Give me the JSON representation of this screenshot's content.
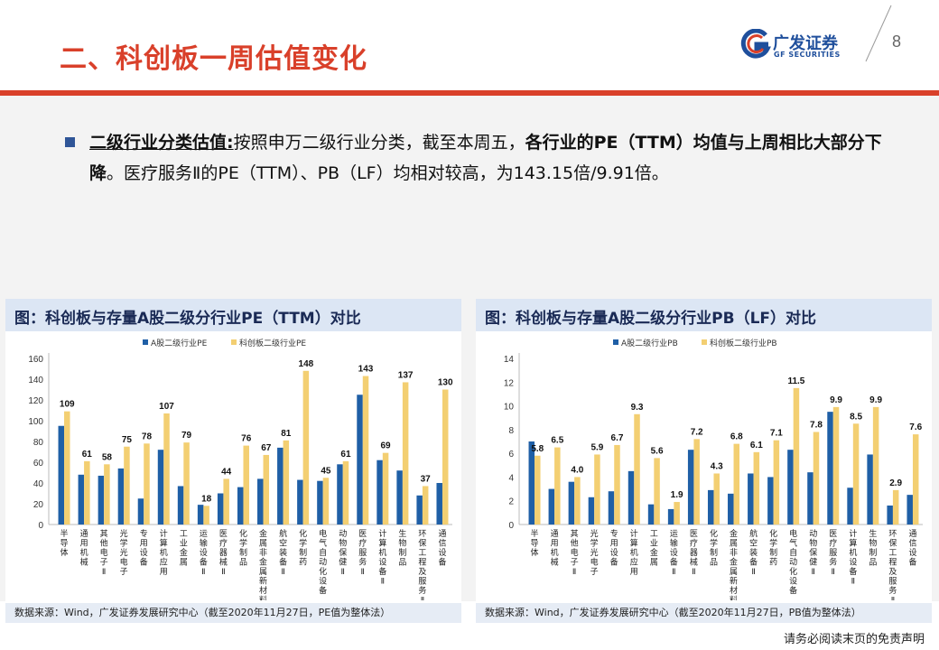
{
  "header": {
    "title": "二、科创板一周估值变化",
    "logo_text": "广发证券",
    "logo_sub": "GF SECURITIES",
    "page_number": "8"
  },
  "body": {
    "label": "二级行业分类估值:",
    "text1": "按照申万二级行业分类，截至本周五，",
    "bold1": "各行业的PE（TTM）均值与上周相比大部分下降",
    "text2": "。医疗服务Ⅱ的PE（TTM）、PB（LF）均相对较高，为143.15倍/9.91倍。"
  },
  "colors": {
    "blue": "#1f5fa6",
    "gold": "#f3cf72",
    "red": "#d9402a"
  },
  "charts": [
    {
      "panel_title": "图：科创板与存量A股二级分行业PE（TTM）对比",
      "source": "数据来源：Wind，广发证券发展研究中心（截至2020年11月27日，PE值为整体法）",
      "chart_data": {
        "type": "bar",
        "categories": [
          "半导体",
          "通用机械",
          "其他电子Ⅱ",
          "光学光电子",
          "专用设备",
          "计算机应用",
          "工业金属",
          "运输设备Ⅱ",
          "医疗器械Ⅱ",
          "化学制品",
          "金属非金属新材料",
          "航空装备Ⅱ",
          "化学制药",
          "电气自动化设备",
          "动物保健Ⅱ",
          "医疗服务Ⅱ",
          "计算机设备Ⅱ",
          "生物制品",
          "环保工程及服务Ⅱ",
          "通信设备"
        ],
        "series": [
          {
            "name": "A股二级行业PE",
            "values": [
              95,
              48,
              47,
              54,
              25,
              72,
              37,
              19,
              30,
              36,
              44,
              74,
              43,
              42,
              58,
              125,
              62,
              52,
              28,
              40
            ]
          },
          {
            "name": "科创板二级行业PE",
            "values": [
              109,
              61,
              58,
              75,
              78,
              107,
              79,
              18,
              44,
              76,
              67,
              81,
              148,
              45,
              61,
              143,
              69,
              137,
              37,
              130
            ]
          }
        ],
        "data_labels": [
          "109",
          "61",
          "58",
          "75",
          "78",
          "107",
          "79",
          "18",
          "44",
          "76",
          "67",
          "81",
          "148",
          "45",
          "61",
          "143",
          "69",
          "137",
          "37",
          "130"
        ],
        "yticks": [
          "0",
          "20",
          "40",
          "60",
          "80",
          "100",
          "120",
          "140",
          "160"
        ],
        "ylim": [
          0,
          160
        ]
      }
    },
    {
      "panel_title": "图：科创板与存量A股二级分行业PB（LF）对比",
      "source": "数据来源：Wind，广发证券发展研究中心（截至2020年11月27日，PB值为整体法）",
      "chart_data": {
        "type": "bar",
        "categories": [
          "半导体",
          "通用机械",
          "其他电子Ⅱ",
          "光学光电子",
          "专用设备",
          "计算机应用",
          "工业金属",
          "运输设备Ⅱ",
          "医疗器械Ⅱ",
          "化学制品",
          "金属非金属新材料",
          "航空装备Ⅱ",
          "化学制药",
          "电气自动化设备",
          "动物保健Ⅱ",
          "医疗服务Ⅱ",
          "计算机设备Ⅱ",
          "生物制品",
          "环保工程及服务Ⅱ",
          "通信设备"
        ],
        "series": [
          {
            "name": "A股二级行业PB",
            "values": [
              7.0,
              3.0,
              3.6,
              2.3,
              2.8,
              4.5,
              1.7,
              1.3,
              6.3,
              2.9,
              2.6,
              4.3,
              4.0,
              6.3,
              4.4,
              9.5,
              3.1,
              5.9,
              1.6,
              2.5
            ]
          },
          {
            "name": "科创板二级行业PB",
            "values": [
              5.8,
              6.5,
              4.0,
              5.9,
              6.7,
              9.3,
              5.6,
              1.9,
              7.2,
              4.3,
              6.8,
              6.1,
              7.1,
              11.5,
              7.8,
              9.9,
              8.5,
              9.9,
              2.9,
              7.6
            ]
          }
        ],
        "data_labels": [
          "5.8",
          "6.5",
          "4.0",
          "5.9",
          "6.7",
          "9.3",
          "5.6",
          "1.9",
          "7.2",
          "4.3",
          "6.8",
          "6.1",
          "7.1",
          "11.5",
          "7.8",
          "9.9",
          "8.5",
          "9.9",
          "2.9",
          "7.6"
        ],
        "yticks": [
          "0",
          "2",
          "4",
          "6",
          "8",
          "10",
          "12",
          "14"
        ],
        "ylim": [
          0,
          14
        ]
      }
    }
  ],
  "footer": {
    "disclaimer": "请务必阅读末页的免责声明"
  }
}
